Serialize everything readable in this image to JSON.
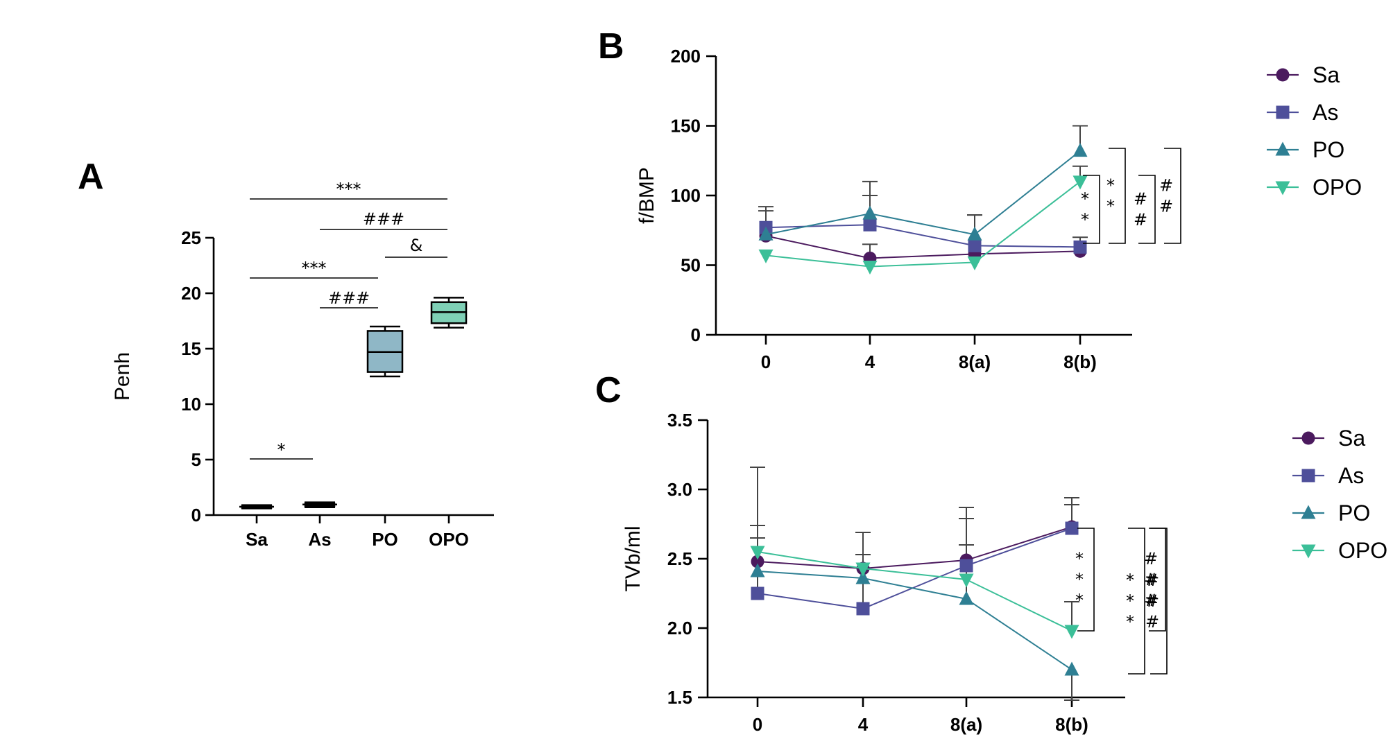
{
  "chart_data": [
    {
      "panel": "A",
      "type": "box",
      "ylabel": "Penh",
      "ylim": [
        0,
        25
      ],
      "yticks": [
        0,
        5,
        10,
        15,
        20,
        25
      ],
      "categories": [
        "Sa",
        "As",
        "PO",
        "OPO"
      ],
      "boxes": [
        {
          "name": "Sa",
          "min": 0.6,
          "q1": 0.65,
          "median": 0.75,
          "q3": 0.85,
          "max": 0.9,
          "color": "#1a1a1a"
        },
        {
          "name": "As",
          "min": 0.7,
          "q1": 0.8,
          "median": 0.95,
          "q3": 1.05,
          "max": 1.15,
          "color": "#1a1a1a"
        },
        {
          "name": "PO",
          "min": 12.5,
          "q1": 12.9,
          "median": 14.7,
          "q3": 16.6,
          "max": 17.0,
          "color": "#8fb7c6"
        },
        {
          "name": "OPO",
          "min": 16.9,
          "q1": 17.3,
          "median": 18.3,
          "q3": 19.2,
          "max": 19.6,
          "color": "#7fd0b6"
        }
      ],
      "significance": [
        {
          "from": "Sa",
          "to": "OPO",
          "label": "***"
        },
        {
          "from": "As",
          "to": "OPO",
          "label": "###"
        },
        {
          "from": "PO",
          "to": "OPO",
          "label": "&"
        },
        {
          "from": "Sa",
          "to": "PO",
          "label": "***"
        },
        {
          "from": "As",
          "to": "PO",
          "label": "###"
        },
        {
          "from": "Sa",
          "to": "As",
          "label": "*"
        }
      ]
    },
    {
      "panel": "B",
      "type": "line",
      "ylabel": "f/BMP",
      "ylim": [
        0,
        200
      ],
      "yticks": [
        0,
        50,
        100,
        150,
        200
      ],
      "categories": [
        "0",
        "4",
        "8(a)",
        "8(b)"
      ],
      "series": [
        {
          "name": "Sa",
          "color": "#4b1a5e",
          "marker": "circle",
          "values": [
            71,
            55,
            58,
            60
          ],
          "errors": [
            null,
            10,
            null,
            null
          ]
        },
        {
          "name": "As",
          "color": "#4e4f9a",
          "marker": "square",
          "values": [
            77,
            79,
            64,
            63
          ],
          "errors": [
            12,
            21,
            22,
            7
          ]
        },
        {
          "name": "PO",
          "color": "#2e7f93",
          "marker": "triangle-up",
          "values": [
            72,
            87,
            72,
            132
          ],
          "errors": [
            20,
            23,
            14,
            18
          ]
        },
        {
          "name": "OPO",
          "color": "#3bbf98",
          "marker": "triangle-down",
          "values": [
            57,
            49,
            52,
            110
          ],
          "errors": [
            null,
            null,
            null,
            11
          ]
        }
      ],
      "brackets": [
        {
          "top": "OPO",
          "bottom": "As",
          "label": "**"
        },
        {
          "top": "PO",
          "bottom": "As",
          "label": "**"
        },
        {
          "top": "OPO",
          "bottom": "As",
          "label": "##"
        },
        {
          "top": "PO",
          "bottom": "As",
          "label": "##"
        }
      ]
    },
    {
      "panel": "C",
      "type": "line",
      "ylabel": "TVb/ml",
      "ylim": [
        1.5,
        3.5
      ],
      "yticks": [
        1.5,
        2.0,
        2.5,
        3.0,
        3.5
      ],
      "ytick_labels": [
        "1.5",
        "2.0",
        "2.5",
        "3.0",
        "3.5"
      ],
      "categories": [
        "0",
        "4",
        "8(a)",
        "8(b)"
      ],
      "series": [
        {
          "name": "Sa",
          "color": "#4b1a5e",
          "marker": "circle",
          "values": [
            2.48,
            2.43,
            2.49,
            2.73
          ],
          "errors": [
            0.26,
            0.26,
            0.38,
            0.21
          ]
        },
        {
          "name": "As",
          "color": "#4e4f9a",
          "marker": "square",
          "values": [
            2.25,
            2.14,
            2.45,
            2.72
          ],
          "errors": [
            0.4,
            0.55,
            0.34,
            0.17
          ]
        },
        {
          "name": "PO",
          "color": "#2e7f93",
          "marker": "triangle-up",
          "values": [
            2.41,
            2.36,
            2.21,
            1.7
          ],
          "errors": [
            0.75,
            0.17,
            0.39,
            0.22
          ]
        },
        {
          "name": "OPO",
          "color": "#3bbf98",
          "marker": "triangle-down",
          "values": [
            2.55,
            2.43,
            2.35,
            1.98
          ],
          "errors": [
            0.19,
            null,
            0.25,
            0.21
          ]
        }
      ],
      "brackets": [
        {
          "label": "***"
        },
        {
          "label": "***"
        },
        {
          "label": "###"
        },
        {
          "label": "###"
        }
      ]
    }
  ],
  "panel_letters": [
    "A",
    "B",
    "C"
  ]
}
